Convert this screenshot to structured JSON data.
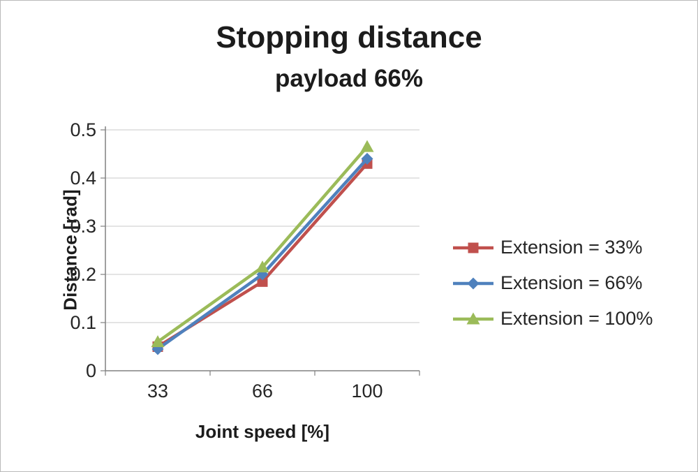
{
  "chart_data": {
    "type": "line",
    "title": "Stopping distance",
    "subtitle": "payload 66%",
    "xlabel": "Joint speed [%]",
    "ylabel": "Distance [rad]",
    "categories": [
      "33",
      "66",
      "100"
    ],
    "yticks": [
      "0",
      "0.1",
      "0.2",
      "0.3",
      "0.4",
      "0.5"
    ],
    "ylim": [
      0,
      0.5
    ],
    "grid": true,
    "legend_position": "right",
    "axis_color": "#808080",
    "gridline_color": "#d3d3d3",
    "series": [
      {
        "name": "Extension = 33%",
        "marker": "square",
        "color": "#c0504d",
        "values": [
          0.05,
          0.185,
          0.43
        ]
      },
      {
        "name": "Extension = 66%",
        "marker": "diamond",
        "color": "#4f81bd",
        "values": [
          0.045,
          0.2,
          0.44
        ]
      },
      {
        "name": "Extension = 100%",
        "marker": "triangle",
        "color": "#9bbb59",
        "values": [
          0.06,
          0.215,
          0.465
        ]
      }
    ]
  }
}
